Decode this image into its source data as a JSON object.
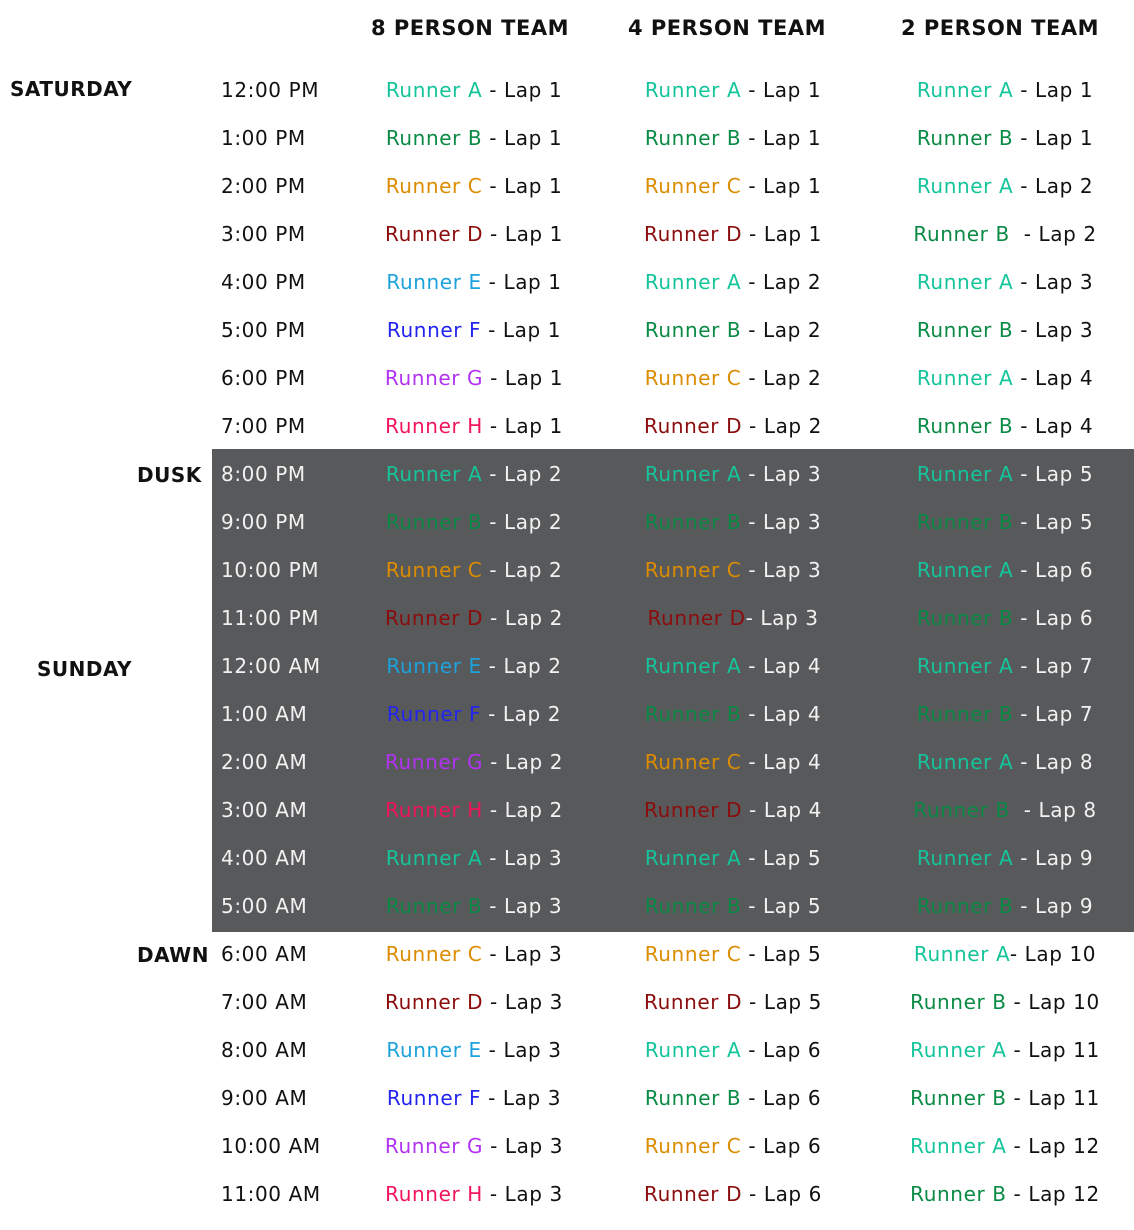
{
  "headers": [
    "8 PERSON TEAM",
    "4 PERSON TEAM",
    "2 PERSON TEAM"
  ],
  "day_labels": {
    "saturday": "SATURDAY",
    "dusk": "DUSK",
    "sunday": "SUNDAY",
    "dawn": "DAWN"
  },
  "runner_colors": {
    "A": "#14c49a",
    "B": "#0a8a45",
    "C": "#dc8c00",
    "D": "#8b0c0c",
    "E": "#1ca2dc",
    "F": "#2424f0",
    "G": "#b232f2",
    "H": "#f2145a"
  },
  "night_band_color": "#58595b",
  "rows": [
    {
      "time": "12:00 PM",
      "cells": [
        [
          "Runner A",
          " - Lap 1"
        ],
        [
          "Runner A",
          " - Lap 1"
        ],
        [
          "Runner A",
          " - Lap 1"
        ]
      ]
    },
    {
      "time": "1:00 PM",
      "cells": [
        [
          "Runner B",
          " - Lap 1"
        ],
        [
          "Runner B",
          " - Lap 1"
        ],
        [
          "Runner B",
          " - Lap 1"
        ]
      ]
    },
    {
      "time": "2:00 PM",
      "cells": [
        [
          "Runner C",
          " - Lap 1"
        ],
        [
          "Runner C",
          " - Lap 1"
        ],
        [
          "Runner A",
          " - Lap 2"
        ]
      ]
    },
    {
      "time": "3:00 PM",
      "cells": [
        [
          "Runner D",
          " - Lap 1"
        ],
        [
          "Runner D",
          " - Lap 1"
        ],
        [
          "Runner B",
          "  - Lap 2"
        ]
      ]
    },
    {
      "time": "4:00 PM",
      "cells": [
        [
          "Runner E",
          " - Lap 1"
        ],
        [
          "Runner A",
          " - Lap 2"
        ],
        [
          "Runner A",
          " - Lap 3"
        ]
      ]
    },
    {
      "time": "5:00 PM",
      "cells": [
        [
          "Runner F",
          " - Lap 1"
        ],
        [
          "Runner B",
          " - Lap 2"
        ],
        [
          "Runner B",
          " - Lap 3"
        ]
      ]
    },
    {
      "time": "6:00 PM",
      "cells": [
        [
          "Runner G",
          " - Lap 1"
        ],
        [
          "Runner C",
          " - Lap 2"
        ],
        [
          "Runner A",
          " - Lap 4"
        ]
      ]
    },
    {
      "time": "7:00 PM",
      "cells": [
        [
          "Runner H",
          " - Lap 1"
        ],
        [
          "Runner D",
          " - Lap 2"
        ],
        [
          "Runner B",
          " - Lap 4"
        ]
      ]
    },
    {
      "time": "8:00 PM",
      "cells": [
        [
          "Runner A",
          " - Lap 2"
        ],
        [
          "Runner A",
          " - Lap 3"
        ],
        [
          "Runner A",
          " - Lap 5"
        ]
      ]
    },
    {
      "time": "9:00 PM",
      "cells": [
        [
          "Runner B",
          " - Lap 2"
        ],
        [
          "Runner B",
          " - Lap 3"
        ],
        [
          "Runner B",
          " - Lap 5"
        ]
      ]
    },
    {
      "time": "10:00 PM",
      "cells": [
        [
          "Runner C",
          " - Lap 2"
        ],
        [
          "Runner C",
          " - Lap 3"
        ],
        [
          "Runner A",
          " - Lap 6"
        ]
      ]
    },
    {
      "time": "11:00 PM",
      "cells": [
        [
          "Runner D",
          " - Lap 2"
        ],
        [
          "Runner D",
          "- Lap 3"
        ],
        [
          "Runner B",
          " - Lap 6"
        ]
      ]
    },
    {
      "time": "12:00 AM",
      "cells": [
        [
          "Runner E",
          " - Lap 2"
        ],
        [
          "Runner A",
          " - Lap 4"
        ],
        [
          "Runner A",
          " - Lap 7"
        ]
      ]
    },
    {
      "time": "1:00 AM",
      "cells": [
        [
          "Runner F",
          " - Lap 2"
        ],
        [
          "Runner B",
          " - Lap 4"
        ],
        [
          "Runner B",
          " - Lap 7"
        ]
      ]
    },
    {
      "time": "2:00 AM",
      "cells": [
        [
          "Runner G",
          " - Lap 2"
        ],
        [
          "Runner C",
          " - Lap 4"
        ],
        [
          "Runner A",
          " - Lap 8"
        ]
      ]
    },
    {
      "time": "3:00 AM",
      "cells": [
        [
          "Runner H",
          " - Lap 2"
        ],
        [
          "Runner D",
          " - Lap 4"
        ],
        [
          "Runner B",
          "  - Lap 8"
        ]
      ]
    },
    {
      "time": "4:00 AM",
      "cells": [
        [
          "Runner A",
          " - Lap 3"
        ],
        [
          "Runner A",
          " - Lap 5"
        ],
        [
          "Runner A",
          " - Lap 9"
        ]
      ]
    },
    {
      "time": "5:00 AM",
      "cells": [
        [
          "Runner B",
          " - Lap 3"
        ],
        [
          "Runner B",
          " - Lap 5"
        ],
        [
          "Runner B",
          " - Lap 9"
        ]
      ]
    },
    {
      "time": "6:00 AM",
      "cells": [
        [
          "Runner C",
          " - Lap 3"
        ],
        [
          "Runner C",
          " - Lap 5"
        ],
        [
          "Runner A",
          "- Lap 10"
        ]
      ]
    },
    {
      "time": "7:00 AM",
      "cells": [
        [
          "Runner D",
          " - Lap 3"
        ],
        [
          "Runner D",
          " - Lap 5"
        ],
        [
          "Runner B",
          " - Lap 10"
        ]
      ]
    },
    {
      "time": "8:00 AM",
      "cells": [
        [
          "Runner E",
          " - Lap 3"
        ],
        [
          "Runner A",
          " - Lap 6"
        ],
        [
          "Runner A",
          " - Lap 11"
        ]
      ]
    },
    {
      "time": "9:00 AM",
      "cells": [
        [
          "Runner F",
          " - Lap 3"
        ],
        [
          "Runner B",
          " - Lap 6"
        ],
        [
          "Runner B",
          " - Lap 11"
        ]
      ]
    },
    {
      "time": "10:00 AM",
      "cells": [
        [
          "Runner G",
          " - Lap 3"
        ],
        [
          "Runner C",
          " - Lap 6"
        ],
        [
          "Runner A",
          " - Lap 12"
        ]
      ]
    },
    {
      "time": "11:00 AM",
      "cells": [
        [
          "Runner H",
          " - Lap 3"
        ],
        [
          "Runner D",
          " - Lap 6"
        ],
        [
          "Runner B",
          " - Lap 12"
        ]
      ]
    }
  ]
}
